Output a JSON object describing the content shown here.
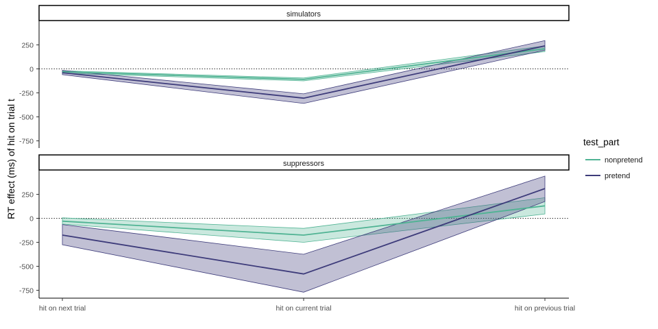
{
  "chart_data": {
    "type": "line",
    "ylabel": "RT effect (ms) of hit on trial t",
    "categories": [
      "hit on next trial",
      "hit on current trial",
      "hit on previous trial"
    ],
    "yticks": [
      250,
      0,
      -250,
      -500,
      -750
    ],
    "ylim": [
      -830,
      500
    ],
    "reference_line": 0,
    "legend": {
      "title": "test_part",
      "placement": "right",
      "entries": [
        "nonpretend",
        "pretend"
      ]
    },
    "colors": {
      "nonpretend": "#4fb393",
      "pretend": "#3d3b7a"
    },
    "panels": [
      {
        "title": "simulators",
        "series": [
          {
            "name": "nonpretend",
            "values": [
              -30,
              -110,
              210
            ],
            "lower": [
              -45,
              -125,
              180
            ],
            "upper": [
              -20,
              -95,
              240
            ]
          },
          {
            "name": "pretend",
            "values": [
              -40,
              -305,
              240
            ],
            "lower": [
              -60,
              -360,
              195
            ],
            "upper": [
              -15,
              -260,
              295
            ]
          }
        ]
      },
      {
        "title": "suppressors",
        "series": [
          {
            "name": "nonpretend",
            "values": [
              -30,
              -175,
              130
            ],
            "lower": [
              -60,
              -250,
              45
            ],
            "upper": [
              5,
              -105,
              215
            ]
          },
          {
            "name": "pretend",
            "values": [
              -175,
              -580,
              310
            ],
            "lower": [
              -275,
              -770,
              175
            ],
            "upper": [
              -65,
              -375,
              440
            ]
          }
        ]
      }
    ]
  }
}
